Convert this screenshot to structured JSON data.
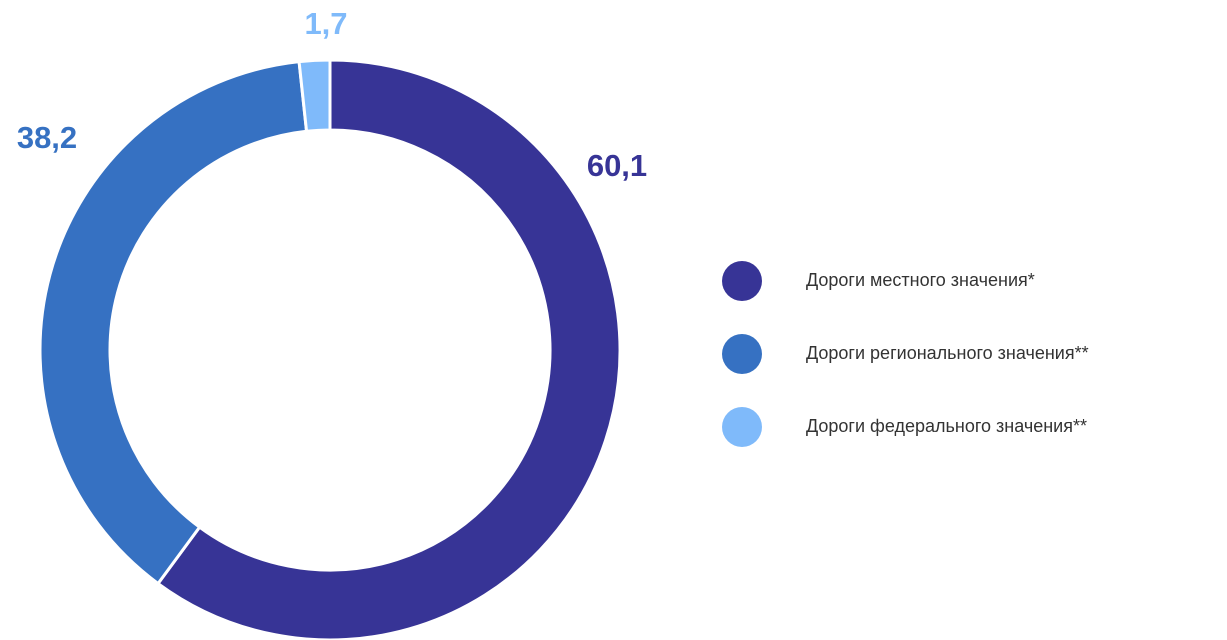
{
  "chart_data": {
    "type": "donut",
    "categories": [
      "Дороги местного значения*",
      "Дороги регионального значения**",
      "Дороги федерального значения**"
    ],
    "values": [
      60.1,
      38.2,
      1.7
    ],
    "value_labels": [
      "60,1",
      "38,2",
      "1,7"
    ],
    "colors": [
      "#373496",
      "#3671c2",
      "#7fbafa"
    ],
    "legend": "right"
  }
}
